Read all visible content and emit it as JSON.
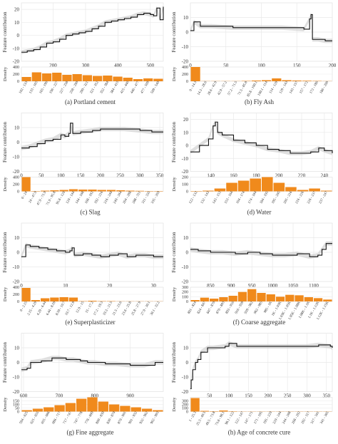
{
  "chart_data": [
    {
      "id": "a",
      "type": "line",
      "caption": "(a) Portland cement",
      "ylabel": "Feature contribution",
      "density_label": "Density",
      "xlim": [
        102,
        540
      ],
      "ylim": [
        -20,
        25
      ],
      "xticks": [
        200,
        300,
        400,
        500
      ],
      "yticks": [
        -20,
        -10,
        0,
        10,
        20
      ],
      "x": [
        102,
        120,
        140,
        160,
        180,
        200,
        220,
        240,
        260,
        280,
        300,
        320,
        340,
        360,
        380,
        400,
        420,
        440,
        460,
        480,
        500,
        510,
        520,
        530,
        540
      ],
      "y": [
        -13,
        -12,
        -11,
        -9,
        -6,
        -5,
        -3,
        0,
        1,
        2,
        3,
        5,
        7,
        10,
        11,
        12,
        13,
        14,
        16,
        17,
        16,
        15,
        21,
        12,
        22
      ],
      "density": {
        "bins": [
          "102 - 133",
          "133 - 165",
          "165 - 196",
          "196 - 227",
          "227 - 258",
          "258 - 290",
          "290 - 321",
          "321 - 352",
          "352 - 384",
          "384 - 415",
          "415 - 446",
          "446 - 477",
          "477 - 509",
          "509 - 540"
        ],
        "values": [
          120,
          250,
          220,
          240,
          180,
          200,
          170,
          150,
          160,
          130,
          100,
          60,
          80,
          70
        ],
        "ylim": [
          0,
          400
        ],
        "yticks": [
          0,
          200,
          400
        ]
      }
    },
    {
      "id": "b",
      "type": "line",
      "caption": "(b) Fly Ash",
      "ylabel": "Feature contribution",
      "density_label": "Density",
      "xlim": [
        0,
        200
      ],
      "ylim": [
        -20,
        20
      ],
      "xticks": [
        0,
        50,
        100,
        150,
        200
      ],
      "yticks": [
        -20,
        -10,
        0,
        10
      ],
      "x": [
        0,
        5,
        14,
        30,
        60,
        100,
        130,
        160,
        168,
        170,
        172,
        180,
        190,
        200
      ],
      "y": [
        1,
        7,
        4,
        4,
        3,
        3,
        3,
        2,
        9,
        12,
        -5,
        -5,
        -6,
        -6
      ],
      "density": {
        "bins": [
          "0 - 14.3",
          "14.3 - 28.6",
          "28.6 - 42.9",
          "42.9 - 57.2",
          "57.2 - 71.5",
          "71.5 - 85.8",
          "85.8 - 100.1",
          "100.1 - 114",
          "114 - 129",
          "129 - 143",
          "143 - 157",
          "157 - 172",
          "172 - 186",
          "186 - 200"
        ],
        "values": [
          420,
          5,
          5,
          5,
          5,
          10,
          20,
          30,
          80,
          30,
          20,
          15,
          10,
          5
        ],
        "ylim": [
          0,
          400
        ],
        "yticks": [
          0,
          200,
          400
        ]
      }
    },
    {
      "id": "c",
      "type": "line",
      "caption": "(c) Slag",
      "ylabel": "Feature contribution",
      "density_label": "Density",
      "xlim": [
        0,
        359
      ],
      "ylim": [
        -20,
        20
      ],
      "xticks": [
        0,
        50,
        100,
        150,
        200,
        250,
        300,
        350
      ],
      "yticks": [
        -20,
        -10,
        0,
        10
      ],
      "x": [
        0,
        20,
        40,
        60,
        80,
        100,
        110,
        120,
        124,
        130,
        150,
        180,
        200,
        230,
        260,
        300,
        330,
        359
      ],
      "y": [
        -4,
        -3,
        -1,
        1,
        2,
        5,
        4,
        6,
        13,
        6,
        7,
        8,
        9,
        9,
        9,
        8,
        7,
        7
      ],
      "density": {
        "bins": [
          "0 - 24",
          "24 - 47.9",
          "47.9 - 71.9",
          "71.9 - 95.8",
          "95.8 - 120",
          "120 - 144",
          "144 - 168",
          "168 - 192",
          "192 - 216",
          "216 - 240",
          "240 - 264",
          "264 - 288",
          "288 - 311",
          "311 - 335",
          "335 - 359"
        ],
        "values": [
          400,
          10,
          20,
          30,
          40,
          60,
          50,
          50,
          40,
          40,
          30,
          20,
          15,
          10,
          10
        ],
        "ylim": [
          0,
          400
        ],
        "yticks": [
          0,
          200,
          400
        ]
      }
    },
    {
      "id": "d",
      "type": "line",
      "caption": "(d) Water",
      "ylabel": "Feature contribution",
      "density_label": "Density",
      "xlim": [
        122,
        247
      ],
      "ylim": [
        -20,
        25
      ],
      "xticks": [
        140,
        160,
        180,
        200,
        220,
        240
      ],
      "yticks": [
        -20,
        -10,
        0,
        10,
        20
      ],
      "x": [
        122,
        130,
        138,
        142,
        144,
        146,
        150,
        160,
        170,
        180,
        190,
        200,
        210,
        220,
        228,
        235,
        240,
        247
      ],
      "y": [
        -5,
        0,
        5,
        15,
        18,
        10,
        8,
        4,
        2,
        0,
        -3,
        -4,
        -6,
        -6,
        -5,
        -2,
        -4,
        -6
      ],
      "density": {
        "bins": [
          "122 - 132",
          "132 - 143",
          "143 - 153",
          "153 - 164",
          "164 - 174",
          "174 - 184",
          "184 - 195",
          "195 - 205",
          "205 - 216",
          "216 - 226",
          "226 - 237",
          "237 - 247"
        ],
        "values": [
          5,
          10,
          40,
          120,
          150,
          180,
          250,
          120,
          60,
          20,
          40,
          10
        ],
        "ylim": [
          0,
          200
        ],
        "yticks": [
          0,
          100,
          200
        ]
      }
    },
    {
      "id": "e",
      "type": "line",
      "caption": "(e) Superplasticizer",
      "ylabel": "Feature contribution",
      "density_label": "Density",
      "xlim": [
        0,
        32.2
      ],
      "ylim": [
        -20,
        20
      ],
      "xticks": [
        0,
        10,
        20,
        30
      ],
      "yticks": [
        -20,
        -10,
        0,
        10
      ],
      "x": [
        0,
        1,
        2,
        4,
        6,
        8,
        10,
        11,
        11.5,
        12,
        14,
        16,
        18,
        20,
        22,
        24,
        26,
        28,
        30,
        32.2
      ],
      "y": [
        -3,
        5,
        4,
        3,
        2,
        1,
        0,
        1,
        3,
        -2,
        -1,
        -2,
        -3,
        -2,
        -1,
        -3,
        -2,
        -2,
        -3,
        -3
      ],
      "density": {
        "bins": [
          "0 - 2.15",
          "2.15 - 4.29",
          "4.29 - 6.44",
          "6.44 - 8.59",
          "8.59 - 10.7",
          "10.7 - 12.9",
          "12.9 - 15",
          "15 - 17.2",
          "17.2 - 19.3",
          "19.3 - 21.5",
          "21.5 - 23.6",
          "23.6 - 25.8",
          "25.8 - 27.9",
          "27.9 - 30.1",
          "30.1 - 32.2"
        ],
        "values": [
          380,
          40,
          90,
          110,
          120,
          110,
          10,
          20,
          10,
          10,
          5,
          5,
          5,
          5,
          5
        ],
        "ylim": [
          0,
          400
        ],
        "yticks": [
          0,
          200,
          400
        ]
      }
    },
    {
      "id": "f",
      "type": "line",
      "caption": "(f) Coarse aggregate",
      "ylabel": "Feature contribution",
      "density_label": "Density",
      "xlim": [
        801,
        1145
      ],
      "ylim": [
        -20,
        20
      ],
      "xticks": [
        850,
        900,
        950,
        1000,
        1050,
        1100
      ],
      "yticks": [
        -20,
        -10,
        0,
        10
      ],
      "x": [
        801,
        820,
        850,
        880,
        910,
        940,
        970,
        1000,
        1030,
        1060,
        1090,
        1110,
        1120,
        1130,
        1145
      ],
      "y": [
        2,
        1,
        0,
        0,
        -1,
        0,
        -1,
        -2,
        -2,
        -1,
        -3,
        -2,
        2,
        6,
        6
      ],
      "density": {
        "bins": [
          "801 - 824",
          "824 - 847",
          "847 - 870",
          "870 - 893",
          "893 - 916",
          "916 - 939",
          "939 - 962",
          "962 - 985",
          "985 - 1K",
          "1K - 1.03K",
          "1.03K - 1.05K",
          "1.05K - 1.08K",
          "1.08K - 1.1K",
          "1.1K - 1.12K",
          "1.12K - 1.15K"
        ],
        "values": [
          30,
          80,
          60,
          90,
          120,
          200,
          260,
          180,
          150,
          100,
          140,
          130,
          90,
          70,
          40
        ],
        "ylim": [
          0,
          300
        ],
        "yticks": [
          0,
          100,
          200,
          300
        ]
      }
    },
    {
      "id": "g",
      "type": "line",
      "caption": "(g) Fine aggregate",
      "ylabel": "Feature contribution",
      "density_label": "Density",
      "xlim": [
        594,
        993
      ],
      "ylim": [
        -20,
        20
      ],
      "xticks": [
        600,
        700,
        800,
        900
      ],
      "yticks": [
        -20,
        -10,
        0,
        10
      ],
      "x": [
        594,
        610,
        620,
        650,
        680,
        700,
        720,
        740,
        760,
        780,
        800,
        830,
        860,
        900,
        940,
        970,
        993
      ],
      "y": [
        -5,
        -4,
        0,
        1,
        3,
        3,
        2,
        2,
        1,
        0,
        0,
        -1,
        -1,
        -2,
        -2,
        0,
        0
      ],
      "density": {
        "bins": [
          "594 - 625",
          "625 - 655",
          "655 - 686",
          "686 - 717",
          "717 - 747",
          "747 - 778",
          "778 - 809",
          "809 - 839",
          "839 - 870",
          "870 - 901",
          "901 - 932",
          "932 - 962",
          "962 - 993"
        ],
        "values": [
          20,
          40,
          60,
          90,
          120,
          180,
          200,
          140,
          100,
          80,
          60,
          40,
          20
        ],
        "ylim": [
          0,
          200
        ],
        "yticks": [
          0,
          50,
          100,
          150
        ]
      }
    },
    {
      "id": "h",
      "type": "line",
      "caption": "(h) Age of concrete cure",
      "ylabel": "Feature contribution",
      "density_label": "Density",
      "xlim": [
        1,
        365
      ],
      "ylim": [
        -20,
        20
      ],
      "xticks": [
        50,
        100,
        150,
        200,
        250,
        300,
        350
      ],
      "yticks": [
        -20,
        -10,
        0,
        10
      ],
      "x": [
        1,
        3,
        7,
        14,
        20,
        28,
        45,
        60,
        90,
        100,
        120,
        150,
        200,
        250,
        300,
        330,
        360,
        365
      ],
      "y": [
        -18,
        -12,
        -5,
        0,
        2,
        7,
        10,
        10,
        11,
        13,
        11,
        11,
        11,
        11,
        11,
        12,
        11,
        10
      ],
      "density": {
        "bins": [
          "1 - 25.3",
          "25.3 - 49.5",
          "49.5 - 73.8",
          "73.8 - 98.1",
          "98.1 - 122",
          "122 - 147",
          "147 - 171",
          "171 - 195",
          "195 - 220",
          "220 - 244",
          "244 - 268",
          "268 - 292",
          "292 - 317",
          "317 - 341",
          "341 - 365"
        ],
        "values": [
          380,
          20,
          10,
          30,
          10,
          5,
          5,
          5,
          5,
          5,
          5,
          5,
          5,
          5,
          5
        ],
        "ylim": [
          0,
          400
        ],
        "yticks": [
          0,
          100,
          200,
          300
        ]
      }
    }
  ],
  "colors": {
    "line": "#111111",
    "band": "#c9c9c9",
    "bar": "#f08a1c",
    "grid": "#e9e9e9",
    "axis_text": "#333333"
  }
}
